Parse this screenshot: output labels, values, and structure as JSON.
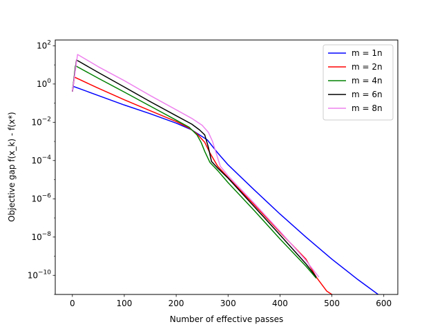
{
  "chart_data": {
    "type": "line",
    "title": "",
    "xlabel": "Number of effective passes",
    "ylabel": "Objective gap f(x_k) - f(x*)",
    "xscale": "linear",
    "yscale": "log",
    "xlim": [
      -33,
      627
    ],
    "ylim": [
      1e-11,
      200
    ],
    "xticks": [
      {
        "value": 0,
        "label": "0"
      },
      {
        "value": 100,
        "label": "100"
      },
      {
        "value": 200,
        "label": "200"
      },
      {
        "value": 300,
        "label": "300"
      },
      {
        "value": 400,
        "label": "400"
      },
      {
        "value": 500,
        "label": "500"
      },
      {
        "value": 600,
        "label": "600"
      }
    ],
    "yticks": [
      {
        "exp": 2,
        "base": "10",
        "power": "2"
      },
      {
        "exp": 0,
        "base": "10",
        "power": "0"
      },
      {
        "exp": -2,
        "base": "10",
        "power": "−2"
      },
      {
        "exp": -4,
        "base": "10",
        "power": "−4"
      },
      {
        "exp": -6,
        "base": "10",
        "power": "−6"
      },
      {
        "exp": -8,
        "base": "10",
        "power": "−8"
      },
      {
        "exp": -10,
        "base": "10",
        "power": "−10"
      }
    ],
    "grid": false,
    "legend": "top-right",
    "series": [
      {
        "name": "m = 1n",
        "color": "#0000ff",
        "points": [
          [
            0,
            0.4
          ],
          [
            2,
            0.75
          ],
          [
            50,
            0.25
          ],
          [
            100,
            0.08
          ],
          [
            150,
            0.028
          ],
          [
            200,
            0.009
          ],
          [
            230,
            0.004
          ],
          [
            260,
            0.0012
          ],
          [
            280,
            0.00025
          ],
          [
            300,
            6e-05
          ],
          [
            350,
            3e-06
          ],
          [
            400,
            1.6e-07
          ],
          [
            450,
            1e-08
          ],
          [
            500,
            7e-10
          ],
          [
            550,
            6e-11
          ],
          [
            597,
            7e-12
          ]
        ]
      },
      {
        "name": "m = 2n",
        "color": "#ff0000",
        "points": [
          [
            0,
            0.4
          ],
          [
            4,
            2.3
          ],
          [
            50,
            0.6
          ],
          [
            100,
            0.15
          ],
          [
            150,
            0.04
          ],
          [
            200,
            0.011
          ],
          [
            225,
            0.005
          ],
          [
            240,
            0.0025
          ],
          [
            255,
            0.0009
          ],
          [
            265,
            0.00025
          ],
          [
            280,
            5e-05
          ],
          [
            300,
            1.3e-05
          ],
          [
            350,
            5e-07
          ],
          [
            400,
            1.8e-08
          ],
          [
            450,
            7e-10
          ],
          [
            470,
            8e-11
          ],
          [
            490,
            1.5e-11
          ],
          [
            500,
            1e-11
          ]
        ]
      },
      {
        "name": "m = 4n",
        "color": "#008000",
        "points": [
          [
            0,
            0.4
          ],
          [
            6,
            9
          ],
          [
            50,
            2.0
          ],
          [
            100,
            0.38
          ],
          [
            150,
            0.07
          ],
          [
            200,
            0.013
          ],
          [
            225,
            0.0055
          ],
          [
            240,
            0.0022
          ],
          [
            248,
            0.0009
          ],
          [
            255,
            0.0003
          ],
          [
            265,
            8e-05
          ],
          [
            280,
            3e-05
          ],
          [
            300,
            7e-06
          ],
          [
            350,
            2.5e-07
          ],
          [
            400,
            8e-09
          ],
          [
            450,
            3e-10
          ],
          [
            470,
            7e-11
          ]
        ]
      },
      {
        "name": "m = 6n",
        "color": "#000000",
        "points": [
          [
            0,
            0.4
          ],
          [
            8,
            18
          ],
          [
            50,
            4.0
          ],
          [
            100,
            0.7
          ],
          [
            150,
            0.12
          ],
          [
            200,
            0.022
          ],
          [
            230,
            0.008
          ],
          [
            245,
            0.004
          ],
          [
            255,
            0.0022
          ],
          [
            262,
            0.0005
          ],
          [
            268,
            9e-05
          ],
          [
            280,
            4e-05
          ],
          [
            300,
            1.2e-05
          ],
          [
            350,
            4e-07
          ],
          [
            400,
            1.3e-08
          ],
          [
            450,
            4e-10
          ],
          [
            470,
            8e-11
          ]
        ]
      },
      {
        "name": "m = 8n",
        "color": "#ee82ee",
        "points": [
          [
            0,
            0.4
          ],
          [
            10,
            35
          ],
          [
            50,
            8.0
          ],
          [
            100,
            1.5
          ],
          [
            150,
            0.25
          ],
          [
            200,
            0.045
          ],
          [
            230,
            0.016
          ],
          [
            250,
            0.007
          ],
          [
            262,
            0.003
          ],
          [
            270,
            0.001
          ],
          [
            276,
            0.0003
          ],
          [
            285,
            5e-05
          ],
          [
            300,
            1.6e-05
          ],
          [
            350,
            6e-07
          ],
          [
            400,
            2e-08
          ],
          [
            450,
            6e-10
          ],
          [
            475,
            8e-11
          ]
        ]
      }
    ]
  }
}
